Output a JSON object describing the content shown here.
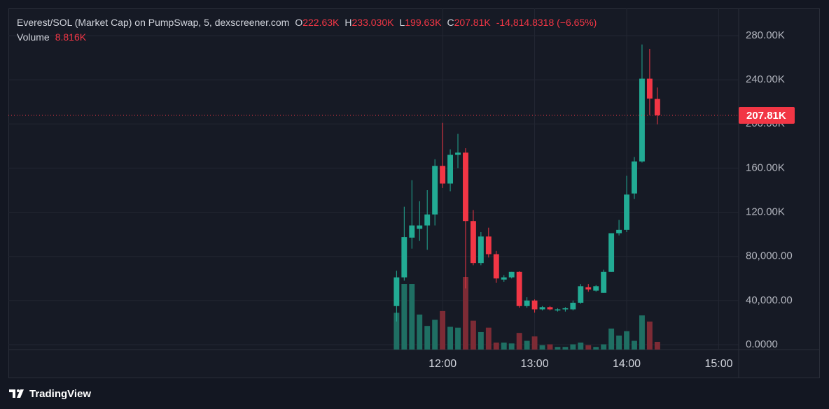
{
  "chart_data": {
    "type": "candlestick",
    "title": "Everest/SOL (Market Cap) on PumpSwap, 5, dexscreener.com",
    "ohlc_legend": {
      "open_label": "O",
      "open": "222.63K",
      "high_label": "H",
      "high": "233.030K",
      "low_label": "L",
      "low": "199.63K",
      "close_label": "C",
      "close": "207.81K",
      "change": "-14,814.8318 (−6.65%)"
    },
    "volume_legend": {
      "label": "Volume",
      "value": "8.816K"
    },
    "x": [
      "11:30",
      "11:35",
      "11:40",
      "11:45",
      "11:50",
      "11:55",
      "12:00",
      "12:05",
      "12:10",
      "12:15",
      "12:20",
      "12:25",
      "12:30",
      "12:35",
      "12:40",
      "12:45",
      "12:50",
      "12:55",
      "13:00",
      "13:05",
      "13:10",
      "13:15",
      "13:20",
      "13:25",
      "13:30",
      "13:35",
      "13:40",
      "13:45",
      "13:50",
      "13:55",
      "14:00",
      "14:05",
      "14:10",
      "14:15",
      "14:20"
    ],
    "open": [
      35000,
      61000,
      97000,
      105000,
      108000,
      118000,
      162000,
      146000,
      172000,
      174000,
      112000,
      74000,
      98000,
      82000,
      59000,
      61000,
      66000,
      35000,
      40000,
      32000,
      34000,
      31000,
      32000,
      32000,
      38000,
      52000,
      49000,
      47000,
      66000,
      101000,
      104000,
      137000,
      166000,
      241000,
      222630
    ],
    "high": [
      67000,
      125000,
      149000,
      130000,
      140000,
      168000,
      201000,
      177000,
      191000,
      178000,
      122000,
      102000,
      106000,
      85000,
      63000,
      66000,
      66500,
      43000,
      41000,
      35000,
      35000,
      33000,
      34000,
      40000,
      55000,
      55000,
      54000,
      68000,
      101000,
      113000,
      153000,
      170000,
      272000,
      268000,
      233030
    ],
    "low": [
      21000,
      58000,
      87000,
      94000,
      86000,
      108000,
      142000,
      139000,
      160000,
      51000,
      72000,
      72000,
      79000,
      56000,
      57000,
      60000,
      33500,
      33500,
      29000,
      31000,
      31000,
      30000,
      30000,
      31000,
      37000,
      48000,
      48000,
      47000,
      66000,
      99000,
      102000,
      132000,
      165000,
      208000,
      199630
    ],
    "close": [
      61000,
      97500,
      108000,
      108000,
      118000,
      162000,
      146000,
      172000,
      174000,
      112000,
      74000,
      98000,
      82000,
      60000,
      61000,
      66000,
      35000,
      40000,
      32000,
      34000,
      32000,
      32000,
      33000,
      38000,
      53000,
      50000,
      53000,
      66000,
      101000,
      104000,
      136000,
      166000,
      241000,
      223000,
      207810
    ],
    "volume": [
      42000,
      75000,
      75000,
      40000,
      27000,
      34000,
      44000,
      26000,
      25000,
      83000,
      33000,
      20000,
      25000,
      8000,
      8000,
      7000,
      19000,
      10000,
      15000,
      5000,
      6000,
      3000,
      3000,
      6000,
      8000,
      5000,
      3000,
      6000,
      24000,
      16000,
      21000,
      10000,
      39000,
      32000,
      8816
    ],
    "up_color": "#22ab94",
    "down_color": "#f23645",
    "volume_up_color": "#1f6f63",
    "volume_down_color": "#7d2b35",
    "xlim": [
      "07:17",
      "15:13"
    ],
    "xticks": [
      "12:00",
      "13:00",
      "14:00",
      "15:00"
    ],
    "ylim": [
      -4435,
      304700
    ],
    "yticks": [
      {
        "value": 0,
        "label": "0.0000"
      },
      {
        "value": 40000,
        "label": "40,000.00"
      },
      {
        "value": 80000,
        "label": "80,000.00"
      },
      {
        "value": 120000,
        "label": "120.00K"
      },
      {
        "value": 160000,
        "label": "160.00K"
      },
      {
        "value": 200000,
        "label": "200.00K"
      },
      {
        "value": 240000,
        "label": "240.00K"
      },
      {
        "value": 280000,
        "label": "280.00K"
      }
    ],
    "grid": true,
    "last_price": 207810,
    "last_price_label": "207.81K"
  },
  "branding": "TradingView"
}
